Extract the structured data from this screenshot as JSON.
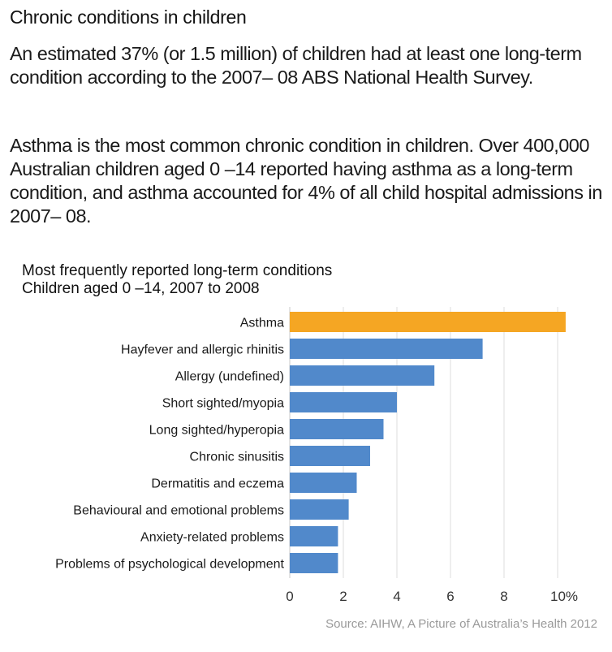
{
  "header": {
    "title": "Chronic conditions in children"
  },
  "paragraphs": [
    "An estimated 37% (or 1.5 million) of children had at least one long-term condition according to the  2007– 08 ABS National Health Survey.",
    "Asthma is the most common chronic condition in children. Over 400,000 Australian children aged 0 –14 reported having asthma as a long-term condition, and asthma accounted for 4% of all child hospital admissions in 2007– 08."
  ],
  "source": "Source: AIHW, A Picture of Australia’s Health 2012",
  "colors": {
    "highlight": "#f5a623",
    "bar": "#5189cb",
    "grid": "#dddddd"
  },
  "chart_data": {
    "type": "bar",
    "orientation": "horizontal",
    "title": "Most frequently reported long-term conditions",
    "subtitle": "Children aged 0 –14, 2007 to 2008",
    "xlabel": "",
    "ylabel": "",
    "categories": [
      "Asthma",
      "Hayfever and allergic rhinitis",
      "Allergy (undefined)",
      "Short sighted/myopia",
      "Long sighted/hyperopia",
      "Chronic sinusitis",
      "Dermatitis and eczema",
      "Behavioural and emotional problems",
      "Anxiety-related problems",
      "Problems of psychological development"
    ],
    "values": [
      10.3,
      7.2,
      5.4,
      4.0,
      3.5,
      3.0,
      2.5,
      2.2,
      1.8,
      1.8
    ],
    "highlighted_category": "Asthma",
    "xlim": [
      0,
      10
    ],
    "xticks": [
      0,
      2,
      4,
      6,
      8,
      10
    ],
    "xtick_labels": [
      "0",
      "2",
      "4",
      "6",
      "8",
      "10%"
    ],
    "grid": true,
    "unit": "%"
  }
}
